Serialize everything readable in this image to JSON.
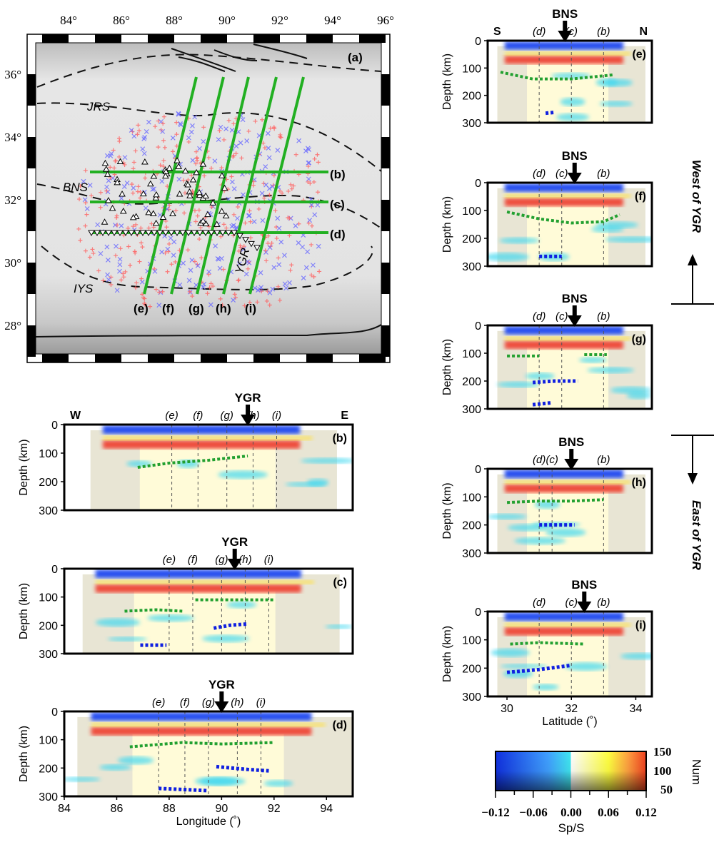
{
  "map": {
    "panel_label": "(a)",
    "lon_ticks": [
      "84°",
      "86°",
      "88°",
      "90°",
      "92°",
      "94°",
      "96°"
    ],
    "lat_ticks": [
      "36°",
      "34°",
      "32°",
      "30°",
      "28°"
    ],
    "suture_labels": [
      "JRS",
      "BNS",
      "IYS",
      "YGR"
    ],
    "profile_labels": [
      "(b)",
      "(c)",
      "(d)",
      "(e)",
      "(f)",
      "(g)",
      "(h)",
      "(i)"
    ],
    "colors": {
      "profile_line": "#22b022",
      "station": "#ffffff",
      "event_plus": "#ff6060",
      "event_cross": "#6a6aff"
    }
  },
  "side_labels": {
    "west": "West of YGR",
    "east": "East of YGR"
  },
  "colorbar": {
    "ticks": [
      "−0.12",
      "−0.06",
      "0.00",
      "0.06",
      "0.12"
    ],
    "xlabel": "Sp/S",
    "num_ticks": [
      "150",
      "100",
      "50"
    ],
    "num_label": "Num",
    "colors": [
      "#1020e0",
      "#30a0ff",
      "#30e8f0",
      "#ffffff",
      "#ffff40",
      "#ff9030",
      "#e01010"
    ]
  },
  "chart_data": [
    {
      "type": "heatmap",
      "panel": "(b)",
      "xlabel": "",
      "ylabel": "Depth (km)",
      "xlim": [
        84,
        95
      ],
      "ylim": [
        300,
        0
      ],
      "ends": [
        "W",
        "E"
      ],
      "arrow": {
        "label": "YGR",
        "x": 91.0
      },
      "markers": [
        {
          "label": "(e)",
          "x": 88.1
        },
        {
          "label": "(f)",
          "x": 89.1
        },
        {
          "label": "(g)",
          "x": 90.2
        },
        {
          "label": "(h)",
          "x": 91.2
        },
        {
          "label": "(i)",
          "x": 92.1
        }
      ],
      "extent": [
        85,
        94.4
      ],
      "yticks": [
        "0",
        "100",
        "200",
        "300"
      ],
      "green_lines": [
        [
          [
            86.8,
            150
          ],
          [
            88,
            135
          ],
          [
            89.5,
            125
          ],
          [
            91,
            110
          ]
        ]
      ],
      "blue_lines": []
    },
    {
      "type": "heatmap",
      "panel": "(c)",
      "xlabel": "",
      "ylabel": "Depth (km)",
      "xlim": [
        84,
        95
      ],
      "ylim": [
        300,
        0
      ],
      "ends": [],
      "arrow": {
        "label": "YGR",
        "x": 90.5
      },
      "markers": [
        {
          "label": "(e)",
          "x": 88.0
        },
        {
          "label": "(f)",
          "x": 88.9
        },
        {
          "label": "(g)",
          "x": 90.0
        },
        {
          "label": "(h)",
          "x": 90.9
        },
        {
          "label": "(i)",
          "x": 91.8
        }
      ],
      "extent": [
        84.7,
        94.5
      ],
      "yticks": [
        "0",
        "100",
        "200",
        "300"
      ],
      "green_lines": [
        [
          [
            86.3,
            150
          ],
          [
            87.5,
            145
          ],
          [
            88.5,
            150
          ]
        ],
        [
          [
            89,
            110
          ],
          [
            90.5,
            110
          ],
          [
            92,
            110
          ]
        ]
      ],
      "blue_lines": [
        [
          [
            89.7,
            210
          ],
          [
            90.3,
            200
          ],
          [
            91,
            195
          ]
        ],
        [
          [
            86.9,
            270
          ],
          [
            87.9,
            270
          ]
        ]
      ]
    },
    {
      "type": "heatmap",
      "panel": "(d)",
      "xlabel": "Longitude (˚)",
      "ylabel": "Depth (km)",
      "xlim": [
        84,
        95
      ],
      "ylim": [
        300,
        0
      ],
      "ends": [],
      "arrow": {
        "label": "YGR",
        "x": 90.0
      },
      "markers": [
        {
          "label": "(e)",
          "x": 87.6
        },
        {
          "label": "(f)",
          "x": 88.6
        },
        {
          "label": "(g)",
          "x": 89.5
        },
        {
          "label": "(h)",
          "x": 90.6
        },
        {
          "label": "(i)",
          "x": 91.5
        }
      ],
      "extent": [
        84.5,
        95
      ],
      "yticks": [
        "0",
        "100",
        "200",
        "300"
      ],
      "xticks": [
        "84",
        "86",
        "88",
        "90",
        "92",
        "94"
      ],
      "green_lines": [
        [
          [
            86.5,
            125
          ],
          [
            88.5,
            110
          ],
          [
            90,
            115
          ],
          [
            92,
            110
          ]
        ]
      ],
      "blue_lines": [
        [
          [
            89.8,
            195
          ],
          [
            91,
            205
          ],
          [
            91.8,
            210
          ]
        ],
        [
          [
            87.6,
            272
          ],
          [
            89.5,
            280
          ]
        ]
      ]
    },
    {
      "type": "heatmap",
      "panel": "(e)",
      "xlabel": "",
      "ylabel": "Depth (km)",
      "xlim": [
        29.4,
        34.5
      ],
      "ylim": [
        300,
        0
      ],
      "ends": [
        "S",
        "N"
      ],
      "arrow": {
        "label": "BNS",
        "x": 31.8
      },
      "markers": [
        {
          "label": "(d)",
          "x": 31
        },
        {
          "label": "(c)",
          "x": 32
        },
        {
          "label": "(b)",
          "x": 33
        }
      ],
      "extent": [
        29.7,
        34.3
      ],
      "yticks": [
        "0",
        "100",
        "200",
        "300"
      ],
      "green_lines": [
        [
          [
            29.8,
            115
          ],
          [
            30.8,
            140
          ],
          [
            32,
            140
          ],
          [
            33.3,
            125
          ]
        ]
      ],
      "blue_lines": [
        [
          [
            31.2,
            265
          ],
          [
            31.5,
            262
          ]
        ]
      ]
    },
    {
      "type": "heatmap",
      "panel": "(f)",
      "xlabel": "",
      "ylabel": "Depth (km)",
      "xlim": [
        29.4,
        34.5
      ],
      "ylim": [
        300,
        0
      ],
      "ends": [],
      "arrow": {
        "label": "BNS",
        "x": 32.1
      },
      "markers": [
        {
          "label": "(d)",
          "x": 31
        },
        {
          "label": "(c)",
          "x": 31.7
        },
        {
          "label": "(b)",
          "x": 33
        }
      ],
      "extent": [
        29.7,
        34.3
      ],
      "yticks": [
        "0",
        "100",
        "200",
        "300"
      ],
      "green_lines": [
        [
          [
            30,
            105
          ],
          [
            31,
            130
          ],
          [
            32,
            145
          ],
          [
            33,
            140
          ],
          [
            33.5,
            115
          ]
        ]
      ],
      "blue_lines": [
        [
          [
            31,
            265
          ],
          [
            31.7,
            265
          ]
        ]
      ]
    },
    {
      "type": "heatmap",
      "panel": "(g)",
      "xlabel": "",
      "ylabel": "Depth (km)",
      "xlim": [
        29.4,
        34.5
      ],
      "ylim": [
        300,
        0
      ],
      "ends": [],
      "arrow": {
        "label": "BNS",
        "x": 32.1
      },
      "markers": [
        {
          "label": "(d)",
          "x": 31
        },
        {
          "label": "(c)",
          "x": 31.7
        },
        {
          "label": "(b)",
          "x": 33
        }
      ],
      "extent": [
        29.7,
        34.3
      ],
      "yticks": [
        "0",
        "100",
        "200",
        "300"
      ],
      "green_lines": [
        [
          [
            30,
            110
          ],
          [
            31,
            110
          ]
        ],
        [
          [
            32.4,
            105
          ],
          [
            33.1,
            105
          ]
        ]
      ],
      "blue_lines": [
        [
          [
            30.8,
            205
          ],
          [
            31.5,
            200
          ],
          [
            32.2,
            200
          ]
        ],
        [
          [
            30.8,
            285
          ],
          [
            31.4,
            278
          ]
        ]
      ]
    },
    {
      "type": "heatmap",
      "panel": "(h)",
      "xlabel": "",
      "ylabel": "Depth (km)",
      "xlim": [
        29.4,
        34.5
      ],
      "ylim": [
        300,
        0
      ],
      "ends": [],
      "arrow": {
        "label": "BNS",
        "x": 32.0
      },
      "markers": [
        {
          "label": "(d)",
          "x": 31
        },
        {
          "label": "(c)",
          "x": 31.4
        },
        {
          "label": "(b)",
          "x": 33
        }
      ],
      "extent": [
        29.7,
        34.3
      ],
      "yticks": [
        "0",
        "100",
        "200",
        "300"
      ],
      "green_lines": [
        [
          [
            30,
            120
          ],
          [
            31,
            115
          ],
          [
            32,
            115
          ],
          [
            33,
            110
          ]
        ]
      ],
      "blue_lines": [
        [
          [
            31,
            200
          ],
          [
            32.1,
            200
          ]
        ]
      ]
    },
    {
      "type": "heatmap",
      "panel": "(i)",
      "xlabel": "Latitude (˚)",
      "ylabel": "Depth (km)",
      "xlim": [
        29.4,
        34.5
      ],
      "ylim": [
        300,
        0
      ],
      "ends": [],
      "arrow": {
        "label": "BNS",
        "x": 32.4
      },
      "markers": [
        {
          "label": "(d)",
          "x": 31
        },
        {
          "label": "(c)",
          "x": 32
        },
        {
          "label": "(b)",
          "x": 33
        }
      ],
      "extent": [
        29.7,
        34.3
      ],
      "yticks": [
        "0",
        "100",
        "200",
        "300"
      ],
      "xticks": [
        "30",
        "32",
        "34"
      ],
      "green_lines": [
        [
          [
            30.1,
            115
          ],
          [
            31,
            110
          ],
          [
            32.4,
            115
          ]
        ]
      ],
      "blue_lines": [
        [
          [
            30,
            215
          ],
          [
            31,
            205
          ],
          [
            32,
            190
          ]
        ]
      ]
    }
  ]
}
